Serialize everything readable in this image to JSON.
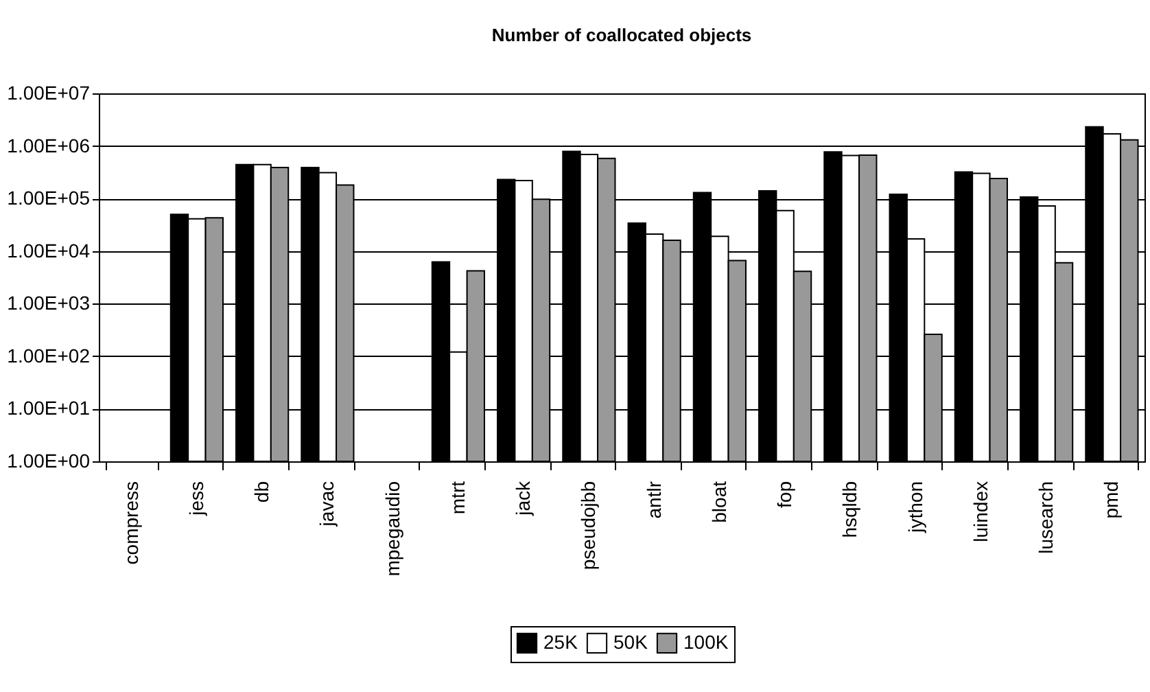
{
  "chart_data": {
    "type": "bar",
    "title": "Number of coallocated objects",
    "categories": [
      "compress",
      "jess",
      "db",
      "javac",
      "mpegaudio",
      "mtrt",
      "jack",
      "pseudojbb",
      "antlr",
      "bloat",
      "fop",
      "hsqldb",
      "jython",
      "luindex",
      "lusearch",
      "pmd"
    ],
    "series": [
      {
        "name": "25K",
        "color": "#000000",
        "values": [
          null,
          50000,
          440000,
          390000,
          null,
          6200,
          230000,
          790000,
          34000,
          130000,
          140000,
          770000,
          120000,
          320000,
          107000,
          2300000
        ]
      },
      {
        "name": "50K",
        "color": "#ffffff",
        "values": [
          null,
          41000,
          440000,
          310000,
          null,
          120,
          220000,
          690000,
          21000,
          19000,
          59000,
          660000,
          17000,
          300000,
          72000,
          1700000
        ]
      },
      {
        "name": "100K",
        "color": "#999999",
        "values": [
          null,
          43000,
          390000,
          180000,
          null,
          4200,
          97000,
          580000,
          16000,
          6600,
          4100,
          670000,
          260,
          240000,
          6000,
          1300000
        ]
      }
    ],
    "log": "y",
    "ylim": [
      1,
      10000000
    ],
    "yticks": [
      {
        "value": 1,
        "label": "1.00E+00"
      },
      {
        "value": 10,
        "label": "1.00E+01"
      },
      {
        "value": 100,
        "label": "1.00E+02"
      },
      {
        "value": 1000,
        "label": "1.00E+03"
      },
      {
        "value": 10000,
        "label": "1.00E+04"
      },
      {
        "value": 100000,
        "label": "1.00E+05"
      },
      {
        "value": 1000000,
        "label": "1.00E+06"
      },
      {
        "value": 10000000,
        "label": "1.00E+07"
      }
    ],
    "grid": "y",
    "legend": "bottom"
  }
}
